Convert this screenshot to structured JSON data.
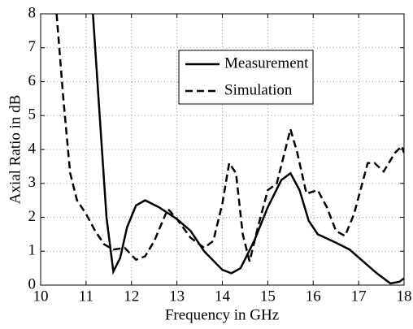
{
  "chart_data": {
    "type": "line",
    "xlabel": "Frequency in GHz",
    "ylabel": "Axial Ratio in dB",
    "xlim": [
      10,
      18
    ],
    "xticks": [
      10,
      11,
      12,
      13,
      14,
      15,
      16,
      17,
      18
    ],
    "ylim": [
      0,
      8
    ],
    "yticks": [
      0,
      1,
      2,
      3,
      4,
      5,
      6,
      7,
      8
    ],
    "grid": true,
    "legend": "upper center",
    "series": [
      {
        "name": "Measurement",
        "color": "#000000",
        "dash": "solid",
        "x": [
          11.15,
          11.3,
          11.45,
          11.6,
          11.75,
          11.9,
          12.1,
          12.3,
          12.6,
          13.0,
          13.3,
          13.6,
          14.0,
          14.2,
          14.4,
          14.7,
          15.0,
          15.3,
          15.5,
          15.7,
          15.9,
          16.1,
          16.5,
          16.8,
          17.1,
          17.4,
          17.7,
          17.9,
          18.0
        ],
        "values": [
          8,
          5,
          2,
          0.4,
          0.8,
          1.7,
          2.35,
          2.5,
          2.3,
          1.95,
          1.6,
          1.0,
          0.45,
          0.35,
          0.5,
          1.3,
          2.3,
          3.1,
          3.3,
          2.8,
          1.9,
          1.5,
          1.25,
          1.05,
          0.7,
          0.35,
          0.05,
          0.1,
          0.2
        ]
      },
      {
        "name": "Simulation",
        "color": "#000000",
        "dash": "dashed",
        "x": [
          10.35,
          10.5,
          10.65,
          10.8,
          11.0,
          11.2,
          11.4,
          11.6,
          11.85,
          12.1,
          12.3,
          12.5,
          12.8,
          13.0,
          13.3,
          13.6,
          13.8,
          14.0,
          14.15,
          14.3,
          14.45,
          14.6,
          14.8,
          15.0,
          15.2,
          15.35,
          15.5,
          15.65,
          15.85,
          16.1,
          16.3,
          16.5,
          16.7,
          16.9,
          17.2,
          17.35,
          17.55,
          17.8,
          17.95,
          18.0
        ],
        "values": [
          8,
          5.5,
          3.3,
          2.5,
          2.1,
          1.6,
          1.2,
          1.05,
          1.1,
          0.75,
          0.85,
          1.3,
          2.25,
          1.95,
          1.4,
          1.1,
          1.3,
          2.4,
          3.6,
          3.3,
          1.5,
          0.7,
          1.8,
          2.8,
          3.0,
          3.8,
          4.6,
          3.9,
          2.7,
          2.8,
          2.3,
          1.6,
          1.45,
          2.1,
          3.6,
          3.6,
          3.35,
          3.9,
          4.1,
          3.9
        ]
      }
    ]
  }
}
